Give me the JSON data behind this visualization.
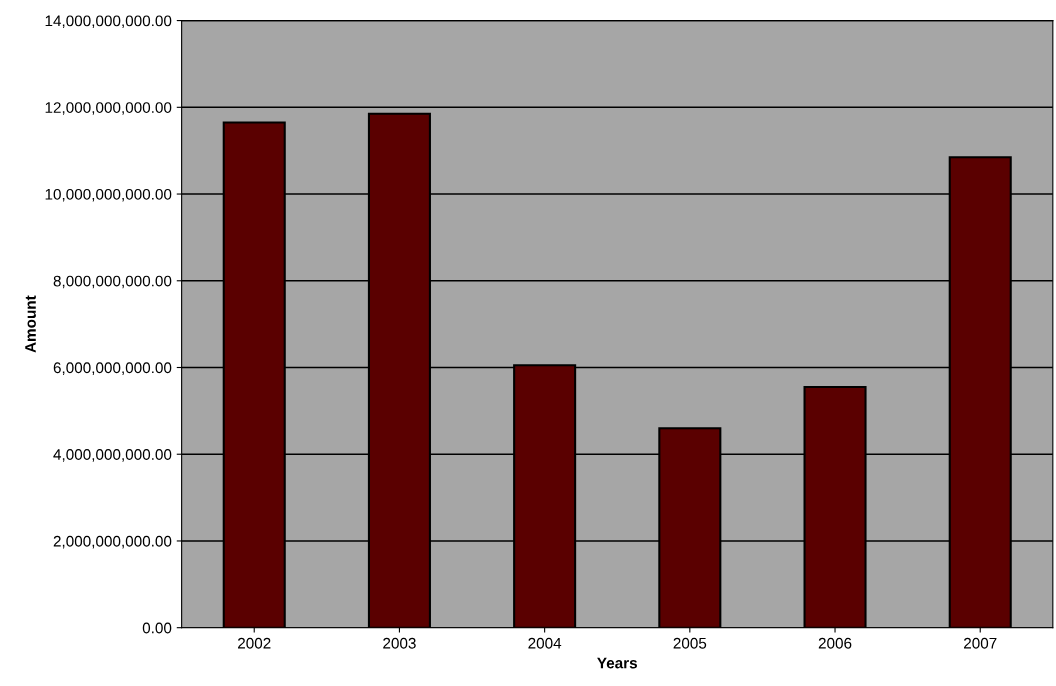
{
  "chart_data": {
    "type": "bar",
    "xlabel": "Years",
    "ylabel": "Amount",
    "categories": [
      "2002",
      "2003",
      "2004",
      "2005",
      "2006",
      "2007"
    ],
    "values": [
      11650000000,
      11850000000,
      6050000000,
      4600000000,
      5550000000,
      10850000000
    ],
    "color": "#5a0000",
    "ylim": [
      0,
      14000000000
    ],
    "yticks": [
      {
        "value": 0,
        "label": "0.00"
      },
      {
        "value": 2000000000,
        "label": "2,000,000,000.00"
      },
      {
        "value": 4000000000,
        "label": "4,000,000,000.00"
      },
      {
        "value": 6000000000,
        "label": "6,000,000,000.00"
      },
      {
        "value": 8000000000,
        "label": "8,000,000,000.00"
      },
      {
        "value": 10000000000,
        "label": "10,000,000,000.00"
      },
      {
        "value": 12000000000,
        "label": "12,000,000,000.00"
      },
      {
        "value": 14000000000,
        "label": "14,000,000,000.00"
      }
    ],
    "grid": "y"
  }
}
